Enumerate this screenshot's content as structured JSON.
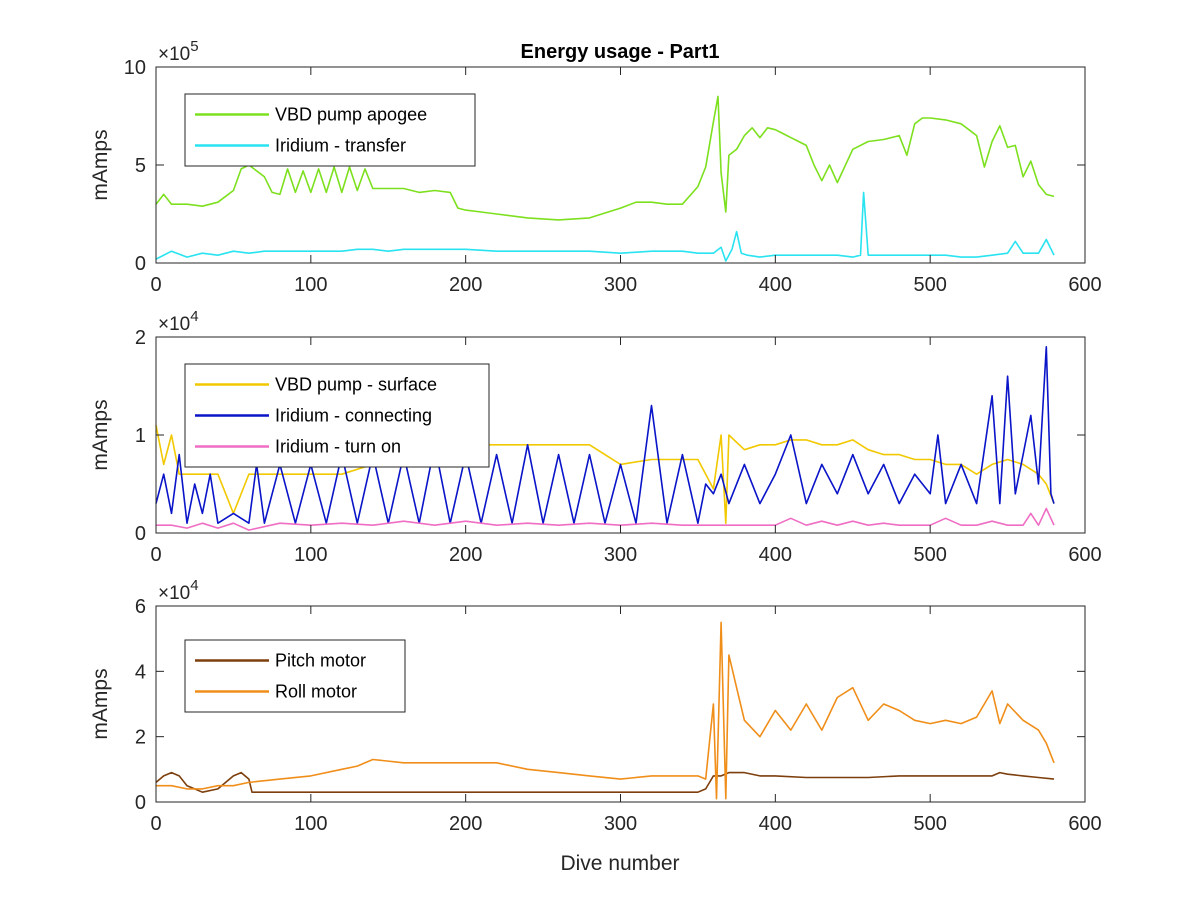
{
  "chart_data": {
    "title": "Energy usage - Part1",
    "xlabel": "Dive number",
    "xlim": [
      0,
      600
    ],
    "xticks": [
      0,
      100,
      200,
      300,
      400,
      500,
      600
    ],
    "panels": [
      {
        "type": "line",
        "ylabel": "mAmps",
        "exponent_label": "×10",
        "exponent_power": "5",
        "scale": 100000,
        "ylim": [
          0,
          10
        ],
        "yticks": [
          0,
          5,
          10
        ],
        "legend_position": "top-left",
        "series": [
          {
            "name": "VBD pump apogee",
            "color": "#7de01e",
            "x": [
              0,
              5,
              10,
              20,
              30,
              40,
              50,
              55,
              60,
              70,
              75,
              80,
              85,
              90,
              95,
              100,
              105,
              110,
              115,
              120,
              125,
              130,
              135,
              140,
              150,
              160,
              170,
              180,
              190,
              195,
              200,
              210,
              220,
              240,
              260,
              280,
              300,
              310,
              320,
              330,
              340,
              350,
              355,
              360,
              363,
              365,
              368,
              370,
              375,
              380,
              385,
              390,
              395,
              400,
              405,
              410,
              415,
              420,
              425,
              430,
              435,
              440,
              450,
              460,
              470,
              480,
              485,
              490,
              495,
              500,
              510,
              520,
              525,
              530,
              535,
              540,
              545,
              550,
              555,
              560,
              565,
              570,
              575,
              580
            ],
            "values": [
              3.0,
              3.5,
              3.0,
              3.0,
              2.9,
              3.1,
              3.7,
              4.8,
              5.0,
              4.4,
              3.6,
              3.5,
              4.8,
              3.6,
              4.7,
              3.6,
              4.8,
              3.6,
              4.9,
              3.6,
              4.9,
              3.7,
              4.8,
              3.8,
              3.8,
              3.8,
              3.6,
              3.7,
              3.6,
              2.8,
              2.7,
              2.6,
              2.5,
              2.3,
              2.2,
              2.3,
              2.8,
              3.1,
              3.1,
              3.0,
              3.0,
              3.9,
              4.9,
              7.2,
              8.5,
              4.6,
              2.6,
              5.5,
              5.8,
              6.5,
              6.9,
              6.4,
              6.9,
              6.8,
              6.6,
              6.4,
              6.2,
              6.0,
              5.0,
              4.2,
              5.0,
              4.1,
              5.8,
              6.2,
              6.3,
              6.5,
              5.5,
              7.1,
              7.4,
              7.4,
              7.3,
              7.1,
              6.8,
              6.5,
              4.9,
              6.2,
              7.0,
              5.9,
              6.0,
              4.4,
              5.2,
              4.0,
              3.5,
              3.4
            ]
          },
          {
            "name": "Iridium - transfer",
            "color": "#29e3f0",
            "x": [
              0,
              10,
              20,
              30,
              40,
              50,
              60,
              70,
              80,
              90,
              100,
              110,
              120,
              130,
              140,
              150,
              160,
              170,
              180,
              190,
              200,
              220,
              240,
              260,
              280,
              300,
              320,
              340,
              350,
              360,
              365,
              368,
              372,
              375,
              378,
              382,
              390,
              400,
              420,
              440,
              450,
              455,
              457,
              460,
              465,
              470,
              480,
              490,
              500,
              510,
              520,
              530,
              540,
              550,
              555,
              560,
              570,
              575,
              580
            ],
            "values": [
              0.2,
              0.6,
              0.3,
              0.5,
              0.4,
              0.6,
              0.5,
              0.6,
              0.6,
              0.6,
              0.6,
              0.6,
              0.6,
              0.7,
              0.7,
              0.6,
              0.7,
              0.7,
              0.7,
              0.7,
              0.7,
              0.6,
              0.6,
              0.6,
              0.6,
              0.5,
              0.6,
              0.6,
              0.5,
              0.5,
              0.8,
              0.1,
              0.7,
              1.6,
              0.5,
              0.4,
              0.3,
              0.4,
              0.4,
              0.4,
              0.3,
              0.4,
              3.6,
              0.4,
              0.4,
              0.4,
              0.4,
              0.4,
              0.4,
              0.4,
              0.3,
              0.3,
              0.4,
              0.5,
              1.1,
              0.5,
              0.5,
              1.2,
              0.4
            ]
          }
        ]
      },
      {
        "type": "line",
        "ylabel": "mAmps",
        "exponent_label": "×10",
        "exponent_power": "4",
        "scale": 10000,
        "ylim": [
          0,
          2
        ],
        "yticks": [
          0,
          1,
          2
        ],
        "legend_position": "top-left",
        "series": [
          {
            "name": "VBD pump - surface",
            "color": "#f2c900",
            "x": [
              0,
              5,
              10,
              15,
              20,
              30,
              40,
              45,
              50,
              60,
              80,
              100,
              120,
              140,
              160,
              180,
              200,
              220,
              240,
              260,
              280,
              300,
              320,
              340,
              350,
              360,
              365,
              368,
              370,
              380,
              390,
              400,
              410,
              420,
              430,
              440,
              450,
              460,
              470,
              480,
              490,
              500,
              510,
              520,
              530,
              540,
              550,
              560,
              570,
              575,
              580
            ],
            "values": [
              1.1,
              0.7,
              1.0,
              0.6,
              0.6,
              0.6,
              0.6,
              0.4,
              0.2,
              0.6,
              0.6,
              0.6,
              0.6,
              0.7,
              0.8,
              0.85,
              0.9,
              0.9,
              0.9,
              0.9,
              0.9,
              0.7,
              0.75,
              0.75,
              0.75,
              0.45,
              1.0,
              0.1,
              1.0,
              0.85,
              0.9,
              0.9,
              0.95,
              0.95,
              0.9,
              0.9,
              0.95,
              0.85,
              0.8,
              0.8,
              0.75,
              0.75,
              0.7,
              0.7,
              0.6,
              0.7,
              0.75,
              0.7,
              0.6,
              0.5,
              0.3
            ]
          },
          {
            "name": "Iridium - connecting",
            "color": "#0a14c8",
            "x": [
              0,
              5,
              10,
              15,
              20,
              25,
              30,
              35,
              40,
              50,
              60,
              65,
              70,
              80,
              90,
              100,
              110,
              120,
              130,
              140,
              150,
              160,
              170,
              180,
              190,
              200,
              210,
              220,
              230,
              240,
              250,
              260,
              270,
              280,
              290,
              300,
              310,
              320,
              330,
              340,
              350,
              355,
              360,
              365,
              370,
              380,
              390,
              400,
              410,
              420,
              430,
              440,
              450,
              460,
              470,
              480,
              490,
              500,
              505,
              510,
              520,
              530,
              540,
              545,
              550,
              555,
              560,
              565,
              570,
              575,
              578,
              580
            ],
            "values": [
              0.3,
              0.6,
              0.2,
              0.8,
              0.1,
              0.5,
              0.2,
              0.6,
              0.1,
              0.2,
              0.1,
              0.7,
              0.1,
              0.7,
              0.1,
              0.7,
              0.1,
              0.8,
              0.1,
              0.8,
              0.1,
              0.8,
              0.1,
              0.9,
              0.1,
              0.8,
              0.1,
              0.8,
              0.1,
              0.9,
              0.1,
              0.8,
              0.1,
              0.8,
              0.1,
              0.7,
              0.1,
              1.3,
              0.1,
              0.8,
              0.1,
              0.5,
              0.4,
              0.6,
              0.3,
              0.7,
              0.3,
              0.6,
              1.0,
              0.3,
              0.7,
              0.4,
              0.8,
              0.4,
              0.7,
              0.3,
              0.6,
              0.4,
              1.0,
              0.3,
              0.7,
              0.3,
              1.4,
              0.3,
              1.6,
              0.4,
              0.8,
              1.2,
              0.5,
              1.9,
              0.4,
              0.3
            ]
          },
          {
            "name": "Iridium - turn on",
            "color": "#ef6ec4",
            "x": [
              0,
              10,
              20,
              30,
              40,
              50,
              60,
              80,
              100,
              120,
              140,
              160,
              180,
              200,
              220,
              240,
              260,
              280,
              300,
              320,
              340,
              350,
              360,
              370,
              380,
              400,
              410,
              420,
              430,
              440,
              450,
              460,
              470,
              480,
              500,
              510,
              520,
              530,
              540,
              550,
              560,
              565,
              570,
              575,
              580
            ],
            "values": [
              0.08,
              0.08,
              0.05,
              0.1,
              0.05,
              0.1,
              0.03,
              0.1,
              0.08,
              0.1,
              0.08,
              0.12,
              0.08,
              0.12,
              0.08,
              0.1,
              0.08,
              0.1,
              0.08,
              0.1,
              0.08,
              0.08,
              0.08,
              0.08,
              0.08,
              0.08,
              0.15,
              0.08,
              0.12,
              0.08,
              0.12,
              0.08,
              0.1,
              0.08,
              0.08,
              0.15,
              0.08,
              0.08,
              0.12,
              0.08,
              0.08,
              0.2,
              0.08,
              0.25,
              0.08
            ]
          }
        ]
      },
      {
        "type": "line",
        "ylabel": "mAmps",
        "exponent_label": "×10",
        "exponent_power": "4",
        "scale": 10000,
        "ylim": [
          0,
          6
        ],
        "yticks": [
          0,
          2,
          4,
          6
        ],
        "legend_position": "top-left",
        "series": [
          {
            "name": "Pitch motor",
            "color": "#7d3f0d",
            "x": [
              0,
              5,
              10,
              15,
              20,
              25,
              30,
              40,
              50,
              55,
              60,
              62,
              70,
              100,
              150,
              200,
              250,
              300,
              350,
              355,
              360,
              365,
              370,
              380,
              390,
              400,
              420,
              440,
              460,
              480,
              500,
              520,
              540,
              545,
              550,
              560,
              570,
              580
            ],
            "values": [
              0.6,
              0.8,
              0.9,
              0.8,
              0.5,
              0.4,
              0.3,
              0.4,
              0.8,
              0.9,
              0.7,
              0.3,
              0.3,
              0.3,
              0.3,
              0.3,
              0.3,
              0.3,
              0.3,
              0.4,
              0.8,
              0.8,
              0.9,
              0.9,
              0.8,
              0.8,
              0.75,
              0.75,
              0.75,
              0.8,
              0.8,
              0.8,
              0.8,
              0.9,
              0.85,
              0.8,
              0.75,
              0.7
            ]
          },
          {
            "name": "Roll motor",
            "color": "#f08e1a",
            "x": [
              0,
              10,
              20,
              30,
              40,
              50,
              60,
              80,
              100,
              120,
              130,
              140,
              160,
              180,
              200,
              220,
              240,
              260,
              280,
              300,
              320,
              340,
              350,
              355,
              360,
              362,
              365,
              368,
              370,
              375,
              380,
              390,
              400,
              410,
              420,
              430,
              440,
              450,
              460,
              470,
              480,
              490,
              500,
              510,
              520,
              530,
              540,
              545,
              550,
              560,
              570,
              575,
              580
            ],
            "values": [
              0.5,
              0.5,
              0.4,
              0.4,
              0.5,
              0.5,
              0.6,
              0.7,
              0.8,
              1.0,
              1.1,
              1.3,
              1.2,
              1.2,
              1.2,
              1.2,
              1.0,
              0.9,
              0.8,
              0.7,
              0.8,
              0.8,
              0.8,
              0.7,
              3.0,
              0.1,
              5.5,
              0.1,
              4.5,
              3.5,
              2.5,
              2.0,
              2.8,
              2.2,
              3.0,
              2.2,
              3.2,
              3.5,
              2.5,
              3.0,
              2.8,
              2.5,
              2.4,
              2.5,
              2.4,
              2.6,
              3.4,
              2.4,
              3.0,
              2.5,
              2.2,
              1.8,
              1.2
            ]
          }
        ]
      }
    ]
  }
}
